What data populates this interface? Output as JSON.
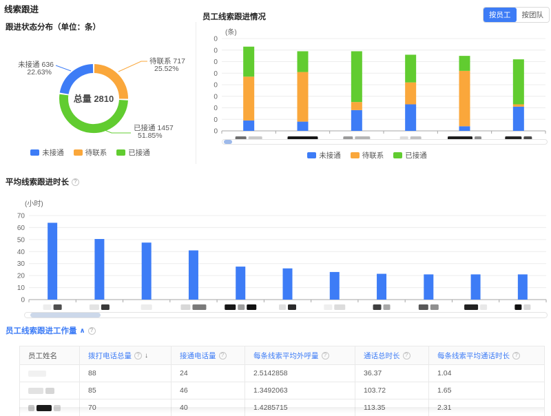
{
  "page": {
    "title": "线索跟进"
  },
  "icons": {
    "help": "?",
    "sort_desc": "↓",
    "collapse": "∧"
  },
  "colors": {
    "blue": "#3D7CF6",
    "orange": "#FAA73B",
    "green": "#61CC30",
    "link": "#3D7CF6"
  },
  "status_panel": {
    "title": "跟进状态分布（单位：条）",
    "center_label": "总量 2810",
    "callouts": {
      "pending": {
        "label": "待联系 717",
        "pct": "25.52%"
      },
      "connected": {
        "label": "已接通 1457",
        "pct": "51.85%"
      },
      "unreached": {
        "label": "未接通 636",
        "pct": "22.63%"
      }
    },
    "legend": [
      {
        "label": "未接通",
        "color": "#3D7CF6"
      },
      {
        "label": "待联系",
        "color": "#FAA73B"
      },
      {
        "label": "已接通",
        "color": "#61CC30"
      }
    ]
  },
  "employee_panel": {
    "title": "员工线索跟进情况",
    "unit": "(条)",
    "toggle_active": "按员工",
    "toggle_inactive": "按团队",
    "legend": [
      {
        "label": "未接通",
        "color": "#3D7CF6"
      },
      {
        "label": "待联系",
        "color": "#FAA73B"
      },
      {
        "label": "已接通",
        "color": "#61CC30"
      }
    ]
  },
  "duration_panel": {
    "title": "平均线索跟进时长",
    "unit": "(小时)"
  },
  "workload_panel": {
    "title": "员工线索跟进工作量",
    "table": {
      "columns": [
        {
          "label": "员工姓名",
          "help": false,
          "sort": null
        },
        {
          "label": "拨打电话总量",
          "help": true,
          "sort": "desc"
        },
        {
          "label": "接通电话量",
          "help": true,
          "sort": null
        },
        {
          "label": "每条线索平均外呼量",
          "help": true,
          "sort": null
        },
        {
          "label": "通话总时长",
          "help": true,
          "sort": null
        },
        {
          "label": "每条线索平均通话时长",
          "help": true,
          "sort": null
        }
      ],
      "rows": [
        {
          "name": "[redacted]",
          "values": [
            "88",
            "24",
            "2.5142858",
            "36.37",
            "1.04"
          ]
        },
        {
          "name": "[redacted]",
          "values": [
            "85",
            "46",
            "1.3492063",
            "103.72",
            "1.65"
          ]
        },
        {
          "name": "[redacted]",
          "values": [
            "70",
            "40",
            "1.4285715",
            "113.35",
            "2.31"
          ]
        }
      ]
    }
  },
  "chart_data": [
    {
      "id": "status_distribution",
      "type": "pie",
      "title": "跟进状态分布（单位：条）",
      "total": 2810,
      "center_label": "总量 2810",
      "slices": [
        {
          "name": "待联系",
          "value": 717,
          "pct": "25.52%",
          "color": "#FAA73B"
        },
        {
          "name": "已接通",
          "value": 1457,
          "pct": "51.85%",
          "color": "#61CC30"
        },
        {
          "name": "未接通",
          "value": 636,
          "pct": "22.63%",
          "color": "#3D7CF6"
        }
      ],
      "legend_position": "bottom"
    },
    {
      "id": "employee_followup",
      "type": "bar",
      "stacked": true,
      "title": "员工线索跟进情况",
      "ylabel": "(条)",
      "ylim": [
        0,
        80
      ],
      "ytick_step": 10,
      "grid": true,
      "categories": [
        "[redacted-1]",
        "[redacted-2]",
        "[redacted-3]",
        "[redacted-4]",
        "[redacted-5]",
        "[redacted-6]"
      ],
      "series": [
        {
          "name": "未接通",
          "color": "#3D7CF6",
          "values": [
            9,
            8,
            18,
            23,
            4,
            21
          ]
        },
        {
          "name": "待联系",
          "color": "#FAA73B",
          "values": [
            38,
            43,
            7,
            19,
            48,
            2
          ]
        },
        {
          "name": "已接通",
          "color": "#61CC30",
          "values": [
            26,
            18,
            44,
            24,
            13,
            39
          ]
        }
      ],
      "legend_position": "bottom"
    },
    {
      "id": "avg_followup_duration",
      "type": "bar",
      "title": "平均线索跟进时长",
      "ylabel": "(小时)",
      "ylim": [
        0,
        70
      ],
      "ytick_step": 10,
      "grid": true,
      "categories": [
        "[redacted-1]",
        "[redacted-2]",
        "[redacted-3]",
        "[redacted-4]",
        "[redacted-5]",
        "[redacted-6]",
        "[redacted-7]",
        "[redacted-8]",
        "[redacted-9]",
        "[redacted-10]",
        "[redacted-11]"
      ],
      "series": [
        {
          "name": "平均线索跟进时长",
          "color": "#3D7CF6",
          "values": [
            64,
            50.5,
            47.5,
            41,
            27.5,
            26,
            23,
            21.5,
            21,
            21,
            21
          ]
        }
      ]
    }
  ],
  "redactions": {
    "stacked_labels": [
      [
        {
          "w": 16,
          "c": "#6f6f6f"
        },
        {
          "w": 20,
          "c": "#c9c9c9"
        }
      ],
      [
        {
          "w": 44,
          "c": "#161616"
        }
      ],
      [
        {
          "w": 14,
          "c": "#9a9a9a"
        },
        {
          "w": 22,
          "c": "#b5b5b5"
        }
      ],
      [
        {
          "w": 12,
          "c": "#dcdcdc"
        },
        {
          "w": 16,
          "c": "#c2c2c2"
        }
      ],
      [
        {
          "w": 36,
          "c": "#1d1d1d"
        },
        {
          "w": 10,
          "c": "#8d8d8d"
        }
      ],
      [
        {
          "w": 24,
          "c": "#242424"
        },
        {
          "w": 12,
          "c": "#4a4a4a"
        }
      ]
    ],
    "bar_labels": [
      [
        {
          "w": 12,
          "c": "#ededed"
        },
        {
          "w": 12,
          "c": "#4f4f4f"
        }
      ],
      [
        {
          "w": 14,
          "c": "#e3e3e3"
        },
        {
          "w": 12,
          "c": "#3a3a3a"
        }
      ],
      [
        {
          "w": 16,
          "c": "#ececec"
        }
      ],
      [
        {
          "w": 14,
          "c": "#d8d8d8"
        },
        {
          "w": 20,
          "c": "#7a7a7a"
        }
      ],
      [
        {
          "w": 16,
          "c": "#171717"
        },
        {
          "w": 10,
          "c": "#9e9e9e"
        },
        {
          "w": 14,
          "c": "#101010"
        }
      ],
      [
        {
          "w": 10,
          "c": "#e0e0e0"
        },
        {
          "w": 12,
          "c": "#2b2b2b"
        }
      ],
      [
        {
          "w": 12,
          "c": "#efefef"
        },
        {
          "w": 16,
          "c": "#dcdcdc"
        }
      ],
      [
        {
          "w": 12,
          "c": "#3f3f3f"
        },
        {
          "w": 10,
          "c": "#a8a8a8"
        }
      ],
      [
        {
          "w": 14,
          "c": "#585858"
        },
        {
          "w": 12,
          "c": "#8f8f8f"
        }
      ],
      [
        {
          "w": 20,
          "c": "#222222"
        },
        {
          "w": 10,
          "c": "#e8e8e8"
        }
      ],
      [
        {
          "w": 10,
          "c": "#101010"
        },
        {
          "w": 10,
          "c": "#d9d9d9"
        }
      ]
    ],
    "row_names": [
      [
        {
          "w": 26,
          "c": "#f1f1f1"
        }
      ],
      [
        {
          "w": 22,
          "c": "#e2e2e2"
        },
        {
          "w": 13,
          "c": "#d6d6d6"
        }
      ],
      [
        {
          "w": 9,
          "c": "#c9c9c9"
        },
        {
          "w": 22,
          "c": "#1b1b1b"
        },
        {
          "w": 10,
          "c": "#d5d5d5"
        }
      ]
    ]
  }
}
